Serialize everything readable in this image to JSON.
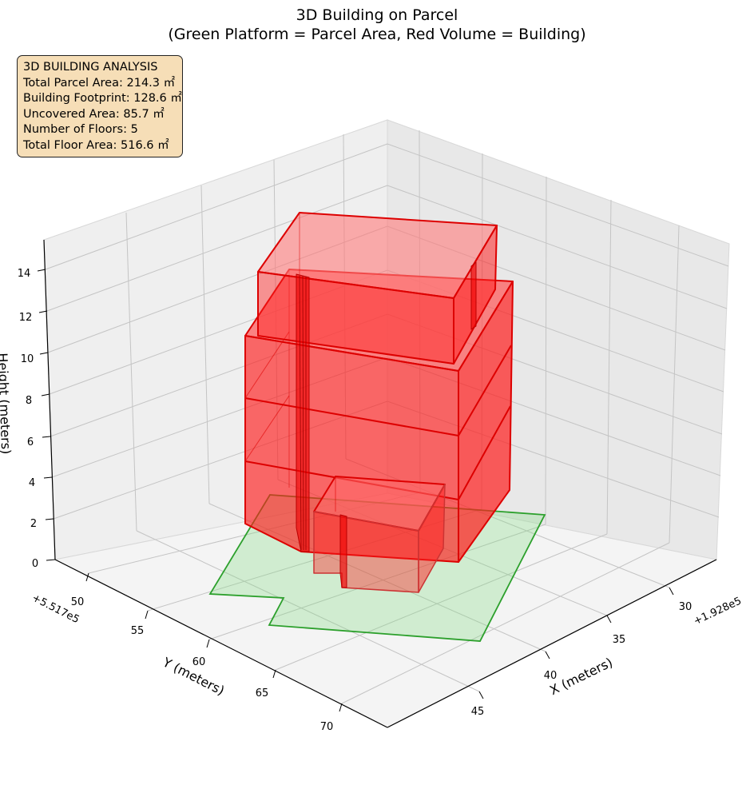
{
  "chart_data": {
    "type": "3d-volume",
    "title": "3D Building on Parcel",
    "subtitle": "(Green Platform = Parcel Area, Red Volume = Building)",
    "xlabel": "X (meters)",
    "ylabel": "Y (meters)",
    "zlabel": "Height (meters)",
    "x_offset": "+1.928e5",
    "y_offset": "+5.517e5",
    "x_ticks": [
      "30",
      "35",
      "40",
      "45"
    ],
    "y_ticks": [
      "50",
      "55",
      "60",
      "65",
      "70"
    ],
    "z_ticks": [
      "0",
      "2",
      "4",
      "6",
      "8",
      "10",
      "12",
      "14"
    ],
    "xlim": [
      26,
      48
    ],
    "ylim": [
      47,
      72
    ],
    "zlim": [
      0,
      15
    ],
    "grid": true,
    "parcel_color": "#7fd97f",
    "parcel_edge_color": "#2ca02c",
    "building_color": "#ff0000",
    "floors": 5
  },
  "info_box": {
    "lines": [
      "3D BUILDING ANALYSIS",
      "Total Parcel Area: 214.3 ㎡",
      "Building Footprint: 128.6 ㎡",
      "Uncovered Area: 85.7 ㎡",
      "Number of Floors: 5",
      "Total Floor Area: 516.6 ㎡"
    ]
  }
}
